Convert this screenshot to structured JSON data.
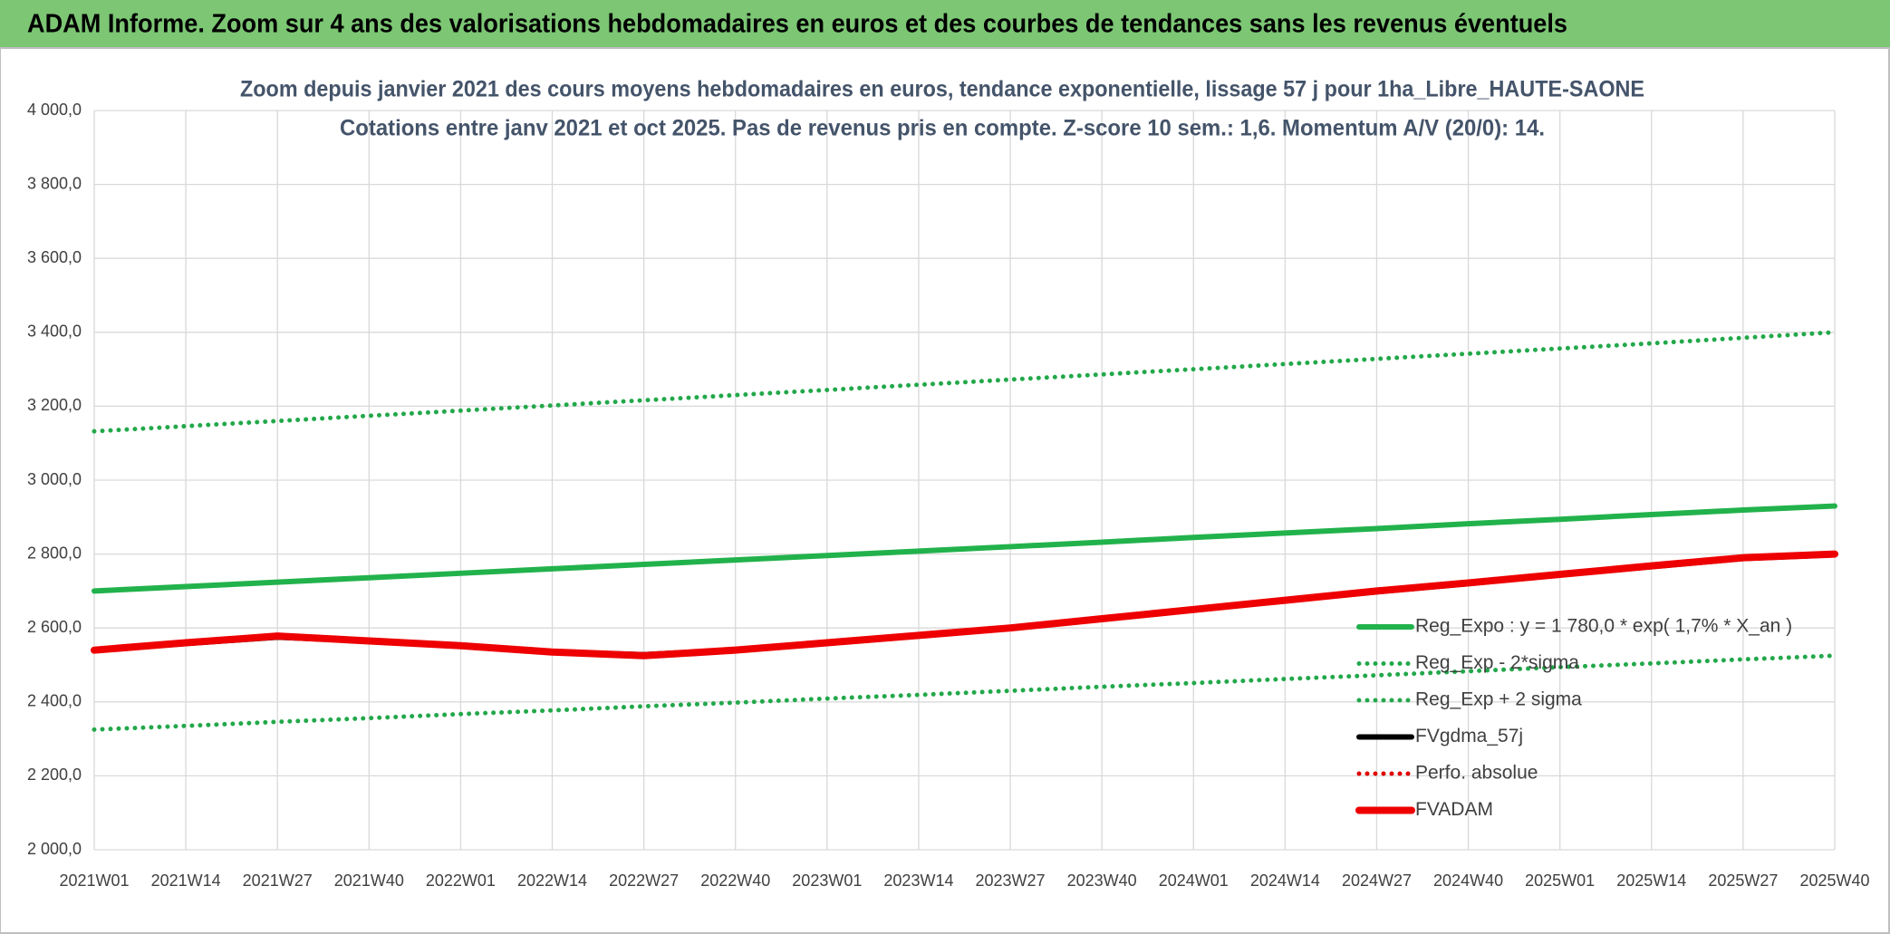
{
  "chart_data": {
    "type": "line",
    "title": "ADAM Informe. Zoom sur 4 ans des valorisations hebdomadaires en euros et des courbes de tendances sans les revenus éventuels",
    "subtitle": [
      "Zoom depuis janvier 2021 des cours moyens hebdomadaires en euros, tendance exponentielle, lissage 57 j pour 1ha_Libre_HAUTE-SAONE",
      "Cotations entre janv 2021 et oct 2025. Pas de revenus pris en compte. Z-score 10 sem.: 1,6. Momentum A/V (20/0): 14."
    ],
    "categories": [
      "2021W01",
      "2021W14",
      "2021W27",
      "2021W40",
      "2022W01",
      "2022W14",
      "2022W27",
      "2022W40",
      "2023W01",
      "2023W14",
      "2023W27",
      "2023W40",
      "2024W01",
      "2024W14",
      "2024W27",
      "2024W40",
      "2025W01",
      "2025W14",
      "2025W27",
      "2025W40"
    ],
    "series": [
      {
        "name": "Reg_Expo : y = 1 780,0 * exp( 1,7% *  X_an )",
        "color": "#22b24c",
        "style": "solid",
        "values": [
          2700,
          2712,
          2724,
          2736,
          2748,
          2760,
          2772,
          2784,
          2796,
          2808,
          2820,
          2832,
          2845,
          2857,
          2869,
          2882,
          2894,
          2907,
          2919,
          2930
        ]
      },
      {
        "name": "Reg_Exp - 2*sigma",
        "color": "#22a84a",
        "style": "dotted",
        "values": [
          2325,
          2335,
          2346,
          2356,
          2367,
          2377,
          2388,
          2398,
          2409,
          2419,
          2430,
          2441,
          2451,
          2462,
          2472,
          2483,
          2494,
          2504,
          2515,
          2525
        ]
      },
      {
        "name": "Reg_Exp + 2 sigma",
        "color": "#22a84a",
        "style": "dotted",
        "values": [
          3132,
          3146,
          3160,
          3174,
          3188,
          3202,
          3216,
          3230,
          3244,
          3258,
          3272,
          3286,
          3300,
          3314,
          3328,
          3342,
          3356,
          3370,
          3385,
          3400
        ]
      },
      {
        "name": "FVgdma_57j",
        "color": "#000000",
        "style": "solid",
        "values": [
          2540,
          2558,
          2575,
          2565,
          2552,
          2535,
          2528,
          2540,
          2560,
          2578,
          2600,
          2624,
          2650,
          2674,
          2698,
          2720,
          2744,
          2766,
          2788,
          2798
        ]
      },
      {
        "name": "Perfo. absolue",
        "color": "#e00000",
        "style": "dotted",
        "values": [
          null,
          null,
          null,
          null,
          null,
          null,
          null,
          null,
          null,
          null,
          null,
          null,
          null,
          null,
          null,
          null,
          null,
          null,
          null,
          null
        ]
      },
      {
        "name": "FVADAM",
        "color": "#ee0000",
        "style": "thick",
        "values": [
          2540,
          2560,
          2578,
          2565,
          2552,
          2535,
          2525,
          2540,
          2560,
          2580,
          2600,
          2625,
          2650,
          2675,
          2700,
          2722,
          2745,
          2768,
          2790,
          2800
        ]
      }
    ],
    "ylim": [
      2000,
      4000
    ],
    "yticks": [
      {
        "value": 2000,
        "label": "2 000,0"
      },
      {
        "value": 2200,
        "label": "2 200,0"
      },
      {
        "value": 2400,
        "label": "2 400,0"
      },
      {
        "value": 2600,
        "label": "2 600,0"
      },
      {
        "value": 2800,
        "label": "2 800,0"
      },
      {
        "value": 3000,
        "label": "3 000,0"
      },
      {
        "value": 3200,
        "label": "3 200,0"
      },
      {
        "value": 3400,
        "label": "3 400,0"
      },
      {
        "value": 3600,
        "label": "3 600,0"
      },
      {
        "value": 3800,
        "label": "3 800,0"
      },
      {
        "value": 4000,
        "label": "4 000,0"
      }
    ],
    "grid": true
  }
}
